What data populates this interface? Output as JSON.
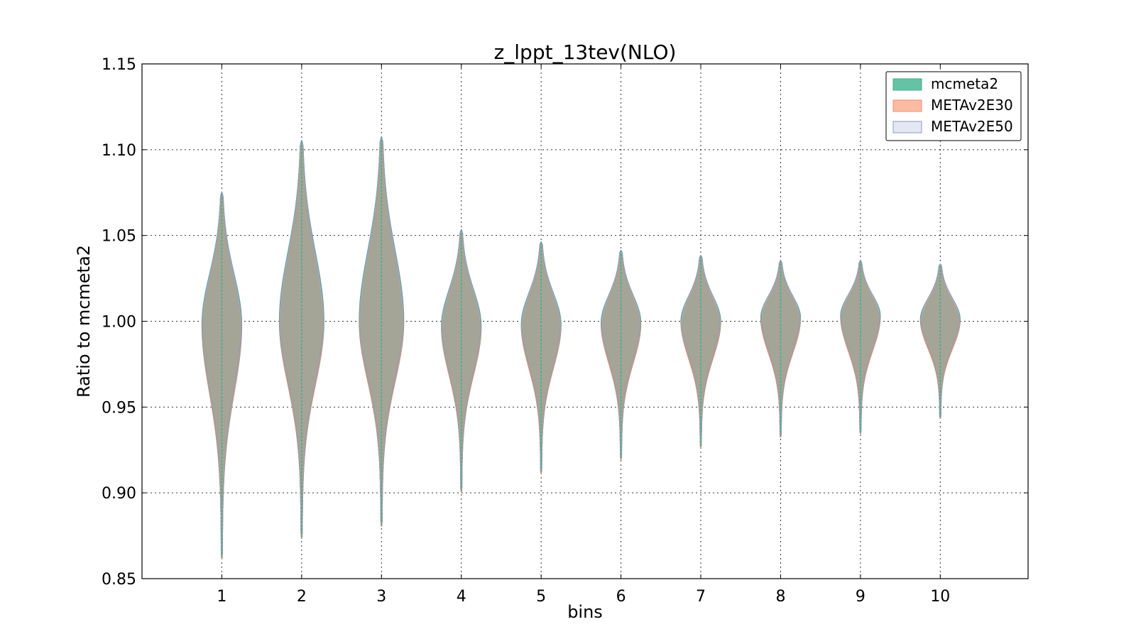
{
  "chart_data": {
    "type": "violin",
    "title": "z_lppt_13tev(NLO)",
    "xlabel": "bins",
    "ylabel": "Ratio to mcmeta2",
    "x_ticks": [
      "1",
      "2",
      "3",
      "4",
      "5",
      "6",
      "7",
      "8",
      "9",
      "10"
    ],
    "y_ticks": [
      "0.85",
      "0.90",
      "0.95",
      "1.00",
      "1.05",
      "1.10",
      "1.15"
    ],
    "ylim": [
      0.85,
      1.15
    ],
    "xlim": [
      0,
      11.1
    ],
    "grid": true,
    "legend_position": "top-right",
    "series": [
      {
        "name": "mcmeta2",
        "color": "#66c2a5",
        "edge": "#3fae8a"
      },
      {
        "name": "METAv2E30",
        "color": "#fcbba1",
        "edge": "#f08c70"
      },
      {
        "name": "METAv2E50",
        "color": "#e4e8f3",
        "edge": "#8b99c9"
      }
    ],
    "violins": [
      {
        "bin": 1,
        "min": 0.862,
        "max": 1.075,
        "peak": 0.998,
        "half_width": 0.25
      },
      {
        "bin": 2,
        "min": 0.874,
        "max": 1.105,
        "peak": 1.0,
        "half_width": 0.28
      },
      {
        "bin": 3,
        "min": 0.881,
        "max": 1.107,
        "peak": 1.0,
        "half_width": 0.28
      },
      {
        "bin": 4,
        "min": 0.901,
        "max": 1.053,
        "peak": 0.997,
        "half_width": 0.25
      },
      {
        "bin": 5,
        "min": 0.912,
        "max": 1.046,
        "peak": 0.998,
        "half_width": 0.25
      },
      {
        "bin": 6,
        "min": 0.92,
        "max": 1.041,
        "peak": 0.999,
        "half_width": 0.25
      },
      {
        "bin": 7,
        "min": 0.927,
        "max": 1.038,
        "peak": 1.0,
        "half_width": 0.25
      },
      {
        "bin": 8,
        "min": 0.933,
        "max": 1.035,
        "peak": 1.002,
        "half_width": 0.25
      },
      {
        "bin": 9,
        "min": 0.935,
        "max": 1.035,
        "peak": 1.003,
        "half_width": 0.25
      },
      {
        "bin": 10,
        "min": 0.944,
        "max": 1.033,
        "peak": 1.001,
        "half_width": 0.25
      }
    ]
  }
}
